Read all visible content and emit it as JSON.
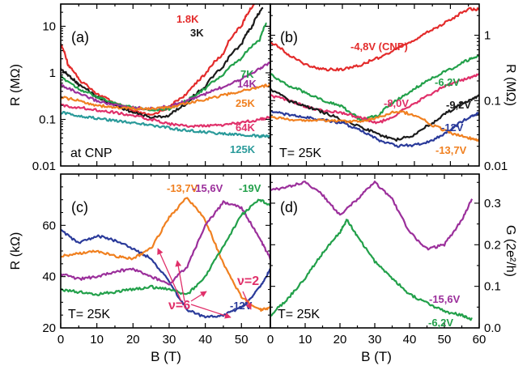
{
  "x_axis": {
    "label": "B (T)",
    "ticks_left": [
      "0",
      "10",
      "20",
      "30",
      "40",
      "50"
    ],
    "ticks_right": [
      "0",
      "10",
      "20",
      "30",
      "40",
      "50",
      "60"
    ]
  },
  "chart_data": [
    {
      "id": "a",
      "type": "line",
      "panel_label": "(a)",
      "annotation": "at CNP",
      "xlim": [
        0,
        58
      ],
      "ylim": [
        0.01,
        30
      ],
      "y_scale": "log",
      "ylabel": "R (MΩ)",
      "yticks": [
        "0.01",
        "0.1",
        "1",
        "10"
      ],
      "series": [
        {
          "name": "1.8K",
          "color": "#e32b2b",
          "x": [
            0,
            2,
            5,
            10,
            15,
            20,
            25,
            30,
            35,
            40,
            45,
            50,
            52,
            55
          ],
          "y": [
            4,
            1.5,
            0.7,
            0.35,
            0.22,
            0.15,
            0.12,
            0.18,
            0.35,
            0.9,
            2.5,
            10,
            20,
            40
          ]
        },
        {
          "name": "3K",
          "color": "#1a1a1a",
          "x": [
            0,
            2,
            5,
            10,
            15,
            20,
            25,
            30,
            35,
            40,
            45,
            50,
            53,
            56
          ],
          "y": [
            1.2,
            0.9,
            0.55,
            0.3,
            0.2,
            0.14,
            0.11,
            0.12,
            0.22,
            0.5,
            1.3,
            4,
            10,
            25
          ]
        },
        {
          "name": "7K",
          "color": "#22a04a",
          "x": [
            0,
            5,
            10,
            15,
            20,
            25,
            30,
            35,
            40,
            45,
            50,
            55,
            57
          ],
          "y": [
            0.8,
            0.45,
            0.3,
            0.22,
            0.18,
            0.16,
            0.17,
            0.25,
            0.45,
            0.9,
            2,
            5,
            12
          ]
        },
        {
          "name": "14K",
          "color": "#9b2f9b",
          "x": [
            0,
            5,
            10,
            15,
            20,
            25,
            30,
            35,
            40,
            45,
            50,
            55,
            58
          ],
          "y": [
            0.55,
            0.35,
            0.25,
            0.2,
            0.18,
            0.17,
            0.19,
            0.25,
            0.35,
            0.5,
            0.75,
            1.2,
            1.7
          ]
        },
        {
          "name": "25K",
          "color": "#f08020",
          "x": [
            0,
            5,
            10,
            15,
            20,
            25,
            30,
            35,
            40,
            45,
            50,
            55,
            58
          ],
          "y": [
            0.3,
            0.25,
            0.2,
            0.18,
            0.17,
            0.17,
            0.18,
            0.22,
            0.27,
            0.33,
            0.4,
            0.5,
            0.55
          ]
        },
        {
          "name": "64K",
          "color": "#e0306a",
          "x": [
            0,
            5,
            10,
            15,
            20,
            25,
            30,
            35,
            40,
            45,
            50,
            55,
            58
          ],
          "y": [
            0.2,
            0.18,
            0.16,
            0.14,
            0.12,
            0.1,
            0.08,
            0.072,
            0.072,
            0.076,
            0.085,
            0.1,
            0.11
          ]
        },
        {
          "name": "125K",
          "color": "#2a9a9a",
          "x": [
            0,
            5,
            10,
            15,
            20,
            25,
            30,
            35,
            40,
            45,
            50,
            55,
            58
          ],
          "y": [
            0.14,
            0.12,
            0.105,
            0.095,
            0.085,
            0.075,
            0.065,
            0.058,
            0.053,
            0.049,
            0.046,
            0.044,
            0.043
          ]
        }
      ]
    },
    {
      "id": "b",
      "type": "line",
      "panel_label": "(b)",
      "annotation": "T= 25K",
      "xlim": [
        0,
        58
      ],
      "ylim": [
        0.01,
        3
      ],
      "y_scale": "log",
      "ylabel": "R (MΩ)",
      "yticks": [
        "0.01",
        "0.1",
        "1"
      ],
      "series": [
        {
          "name": "-4,8V (CNP)",
          "color": "#e32b2b",
          "x": [
            0,
            5,
            10,
            15,
            20,
            25,
            30,
            35,
            40,
            45,
            50,
            55,
            58
          ],
          "y": [
            0.8,
            0.5,
            0.35,
            0.3,
            0.3,
            0.35,
            0.45,
            0.6,
            0.85,
            1.2,
            1.7,
            2.5,
            2.5
          ]
        },
        {
          "name": "-6,2V",
          "color": "#22a04a",
          "x": [
            0,
            5,
            10,
            15,
            20,
            25,
            30,
            35,
            40,
            45,
            50,
            55,
            58
          ],
          "y": [
            0.25,
            0.17,
            0.13,
            0.1,
            0.08,
            0.05,
            0.06,
            0.1,
            0.15,
            0.22,
            0.3,
            0.42,
            0.5
          ]
        },
        {
          "name": "-8,0V",
          "color": "#e0306a",
          "x": [
            0,
            5,
            10,
            15,
            20,
            25,
            30,
            35,
            40,
            45,
            50,
            55,
            58
          ],
          "y": [
            0.12,
            0.1,
            0.08,
            0.07,
            0.065,
            0.055,
            0.045,
            0.06,
            0.09,
            0.13,
            0.18,
            0.22,
            0.25
          ]
        },
        {
          "name": "-9,2V",
          "color": "#1a1a1a",
          "x": [
            0,
            5,
            10,
            15,
            20,
            25,
            30,
            35,
            40,
            45,
            50,
            55,
            58
          ],
          "y": [
            0.15,
            0.1,
            0.08,
            0.065,
            0.05,
            0.04,
            0.03,
            0.025,
            0.03,
            0.045,
            0.07,
            0.1,
            0.12
          ]
        },
        {
          "name": "-12V",
          "color": "#2a3a9a",
          "x": [
            0,
            5,
            10,
            15,
            20,
            25,
            30,
            35,
            40,
            45,
            50,
            55,
            58
          ],
          "y": [
            0.07,
            0.06,
            0.055,
            0.05,
            0.045,
            0.035,
            0.025,
            0.02,
            0.021,
            0.024,
            0.035,
            0.055,
            0.065
          ]
        },
        {
          "name": "-13,7V",
          "color": "#f08020",
          "x": [
            0,
            5,
            10,
            15,
            20,
            25,
            30,
            35,
            40,
            45,
            50,
            55,
            58
          ],
          "y": [
            0.055,
            0.052,
            0.05,
            0.05,
            0.048,
            0.048,
            0.055,
            0.07,
            0.06,
            0.042,
            0.032,
            0.027,
            0.025
          ]
        }
      ]
    },
    {
      "id": "c",
      "type": "line",
      "panel_label": "(c)",
      "annotation": "T= 25K",
      "xlim": [
        0,
        58
      ],
      "ylim": [
        20,
        80
      ],
      "ylabel": "R (kΩ)",
      "yticks": [
        20,
        40,
        60
      ],
      "filling_factor_labels": [
        "ν=6",
        "ν=2"
      ],
      "series": [
        {
          "name": "-12V",
          "color": "#2a3a9a",
          "x": [
            0,
            5,
            10,
            15,
            20,
            25,
            30,
            35,
            40,
            45,
            50,
            53,
            56,
            58
          ],
          "y": [
            58,
            53,
            56,
            54,
            51,
            47,
            38,
            27,
            24,
            25,
            28,
            32,
            38,
            43
          ]
        },
        {
          "name": "-13,7V",
          "color": "#f08020",
          "x": [
            0,
            5,
            10,
            15,
            20,
            25,
            30,
            35,
            40,
            45,
            50,
            55,
            58
          ],
          "y": [
            48,
            49,
            50,
            48,
            47,
            51,
            63,
            71,
            62,
            45,
            32,
            27,
            28
          ]
        },
        {
          "name": "-15,6V",
          "color": "#9b2f9b",
          "x": [
            0,
            5,
            10,
            15,
            20,
            25,
            30,
            35,
            40,
            45,
            50,
            55,
            58
          ],
          "y": [
            41,
            39,
            40,
            42,
            43,
            40,
            37,
            44,
            60,
            69,
            67,
            55,
            47
          ]
        },
        {
          "name": "-19V",
          "color": "#22a04a",
          "x": [
            0,
            5,
            10,
            15,
            20,
            25,
            30,
            35,
            40,
            45,
            50,
            55,
            58
          ],
          "y": [
            35,
            34,
            33,
            34,
            35,
            36,
            35,
            33,
            40,
            52,
            64,
            70,
            68
          ]
        }
      ]
    },
    {
      "id": "d",
      "type": "line",
      "panel_label": "(d)",
      "annotation": "T= 25K",
      "xlim": [
        0,
        60
      ],
      "ylim": [
        0,
        0.37
      ],
      "ylabel": "G (2e²/h)",
      "yticks": [
        0.0,
        0.1,
        0.2,
        0.3
      ],
      "series": [
        {
          "name": "-15,6V",
          "color": "#9b2f9b",
          "x": [
            0,
            5,
            10,
            15,
            20,
            25,
            30,
            35,
            40,
            45,
            50,
            55,
            58
          ],
          "y": [
            0.33,
            0.34,
            0.35,
            0.32,
            0.27,
            0.31,
            0.35,
            0.31,
            0.23,
            0.19,
            0.2,
            0.26,
            0.31
          ]
        },
        {
          "name": "-6,2V",
          "color": "#22a04a",
          "x": [
            0,
            5,
            10,
            15,
            20,
            22,
            25,
            30,
            35,
            40,
            45,
            50,
            55,
            58
          ],
          "y": [
            0.03,
            0.07,
            0.12,
            0.18,
            0.23,
            0.26,
            0.22,
            0.16,
            0.12,
            0.08,
            0.06,
            0.04,
            0.03,
            0.02
          ]
        }
      ]
    }
  ]
}
